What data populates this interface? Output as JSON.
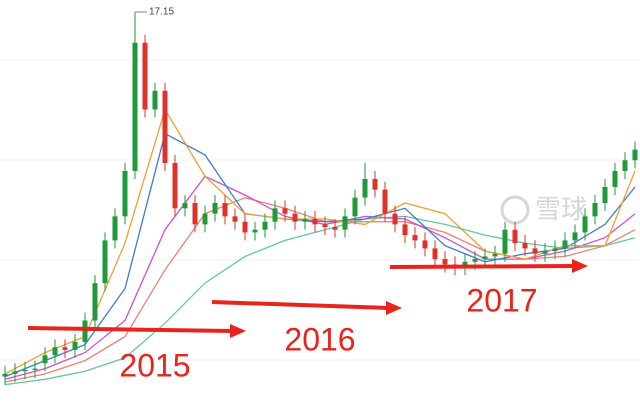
{
  "chart_data": {
    "type": "candlestick",
    "ylim": [
      2.4,
      17.6
    ],
    "up_color": "#1f9a3a",
    "down_color": "#e0302a",
    "peak_label": "17.15",
    "watermark": "雪球",
    "annotations": [
      "2015",
      "2016",
      "2017"
    ],
    "open": [
      3.5,
      3.6,
      3.7,
      3.75,
      4.0,
      4.3,
      4.6,
      4.5,
      4.8,
      5.6,
      7.0,
      8.6,
      9.5,
      11.2,
      16.0,
      13.5,
      14.2,
      11.5,
      9.8,
      10.0,
      9.2,
      9.6,
      10.0,
      9.5,
      9.3,
      8.9,
      9.0,
      9.3,
      9.8,
      9.6,
      9.3,
      9.4,
      9.2,
      9.1,
      9.0,
      9.5,
      10.2,
      10.9,
      10.5,
      9.6,
      9.2,
      8.8,
      8.6,
      8.3,
      7.9,
      7.7,
      7.6,
      7.8,
      7.9,
      8.0,
      8.1,
      9.0,
      8.5,
      8.3,
      8.1,
      8.2,
      8.3,
      8.6,
      8.9,
      9.5,
      10.0,
      10.6,
      11.2,
      11.6
    ],
    "high": [
      3.9,
      4.0,
      4.05,
      4.1,
      4.6,
      4.9,
      4.9,
      5.1,
      5.9,
      7.3,
      8.9,
      9.8,
      11.5,
      17.15,
      16.3,
      14.5,
      14.5,
      11.8,
      10.3,
      10.3,
      9.9,
      10.3,
      10.3,
      9.8,
      9.6,
      9.3,
      9.6,
      10.1,
      10.1,
      9.9,
      9.7,
      9.7,
      9.5,
      9.4,
      9.8,
      10.5,
      11.5,
      11.2,
      10.8,
      9.9,
      9.5,
      9.1,
      8.9,
      8.6,
      8.2,
      8.0,
      8.1,
      8.2,
      8.3,
      8.4,
      9.3,
      9.3,
      8.8,
      8.6,
      8.5,
      8.6,
      8.9,
      9.2,
      9.8,
      10.3,
      10.9,
      11.5,
      11.9,
      12.3
    ],
    "low": [
      3.2,
      3.3,
      3.4,
      3.45,
      3.7,
      4.0,
      4.2,
      4.2,
      4.5,
      5.3,
      6.7,
      8.3,
      9.2,
      10.9,
      13.2,
      13.2,
      11.2,
      9.5,
      9.5,
      8.9,
      8.9,
      9.3,
      9.2,
      9.0,
      8.6,
      8.6,
      8.7,
      9.0,
      9.3,
      9.0,
      9.0,
      8.9,
      8.8,
      8.7,
      8.7,
      9.2,
      9.9,
      10.2,
      9.3,
      8.9,
      8.5,
      8.3,
      8.0,
      7.6,
      7.4,
      7.3,
      7.3,
      7.5,
      7.6,
      7.7,
      7.8,
      8.2,
      8.0,
      7.8,
      7.8,
      7.9,
      8.0,
      8.3,
      8.6,
      9.2,
      9.7,
      10.3,
      10.9,
      11.3
    ],
    "close": [
      3.6,
      3.7,
      3.75,
      3.8,
      4.3,
      4.6,
      4.5,
      4.8,
      5.6,
      7.0,
      8.6,
      9.5,
      11.2,
      16.0,
      13.5,
      14.2,
      11.5,
      9.8,
      10.0,
      9.2,
      9.6,
      10.0,
      9.5,
      9.3,
      8.9,
      9.0,
      9.3,
      9.8,
      9.6,
      9.3,
      9.4,
      9.2,
      9.1,
      9.0,
      9.5,
      10.2,
      10.9,
      10.5,
      9.6,
      9.2,
      8.8,
      8.6,
      8.3,
      7.9,
      7.7,
      7.6,
      7.8,
      7.9,
      8.0,
      8.1,
      9.0,
      8.5,
      8.3,
      8.1,
      8.2,
      8.3,
      8.6,
      8.9,
      9.5,
      10.0,
      10.6,
      11.2,
      11.6,
      12.0
    ],
    "ma_x": [
      0,
      4,
      8,
      12,
      16,
      20,
      24,
      28,
      32,
      36,
      40,
      44,
      48,
      52,
      56,
      60,
      63
    ],
    "series": [
      {
        "color": "#60c8a0",
        "values": [
          3.2,
          3.4,
          3.7,
          4.2,
          5.5,
          7.0,
          8.0,
          8.6,
          9.0,
          9.4,
          9.5,
          9.2,
          8.8,
          8.5,
          8.3,
          8.4,
          8.7
        ]
      },
      {
        "color": "#f08070",
        "values": [
          3.3,
          3.6,
          4.1,
          5.0,
          7.5,
          9.6,
          10.2,
          9.8,
          9.3,
          9.3,
          9.3,
          8.9,
          8.2,
          7.9,
          8.0,
          8.4,
          9.0
        ]
      },
      {
        "color": "#d050d0",
        "values": [
          3.4,
          3.8,
          4.4,
          5.6,
          9.0,
          11.0,
          10.3,
          9.5,
          9.2,
          9.5,
          9.4,
          8.7,
          7.9,
          7.9,
          8.2,
          8.7,
          9.6
        ]
      },
      {
        "color": "#3a7bd5",
        "values": [
          3.5,
          4.1,
          4.7,
          6.8,
          12.6,
          11.8,
          9.6,
          9.4,
          9.3,
          9.4,
          9.8,
          8.4,
          7.8,
          8.1,
          8.3,
          9.2,
          10.6
        ]
      },
      {
        "color": "#f0a030",
        "values": [
          3.6,
          4.4,
          5.0,
          8.5,
          13.5,
          11.0,
          9.6,
          9.4,
          9.4,
          9.2,
          10.0,
          9.6,
          8.2,
          7.9,
          8.4,
          8.4,
          11.2
        ]
      }
    ]
  }
}
